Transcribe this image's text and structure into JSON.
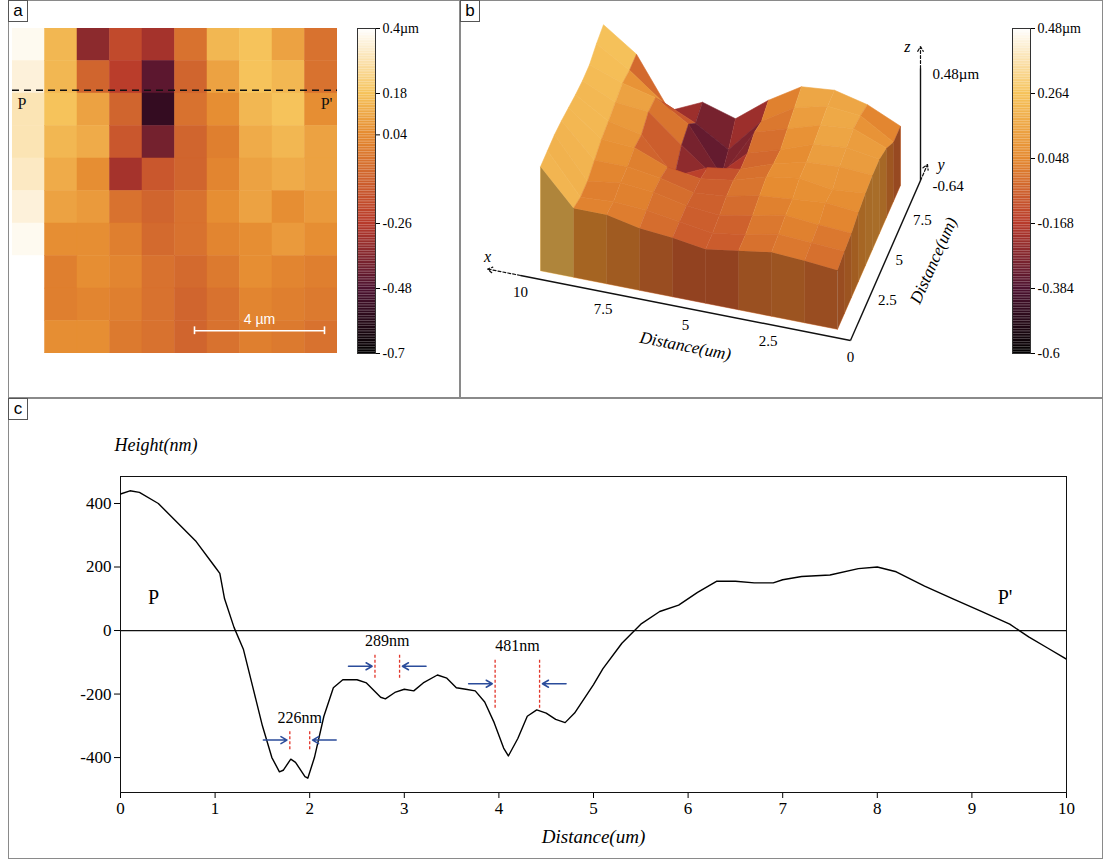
{
  "chart_data": [
    {
      "type": "heatmap",
      "title": "a",
      "x": [
        0.5,
        1.5,
        2.5,
        3.5,
        4.5,
        5.5,
        6.5,
        7.5,
        8.5,
        9.5
      ],
      "y": [
        9.5,
        8.5,
        7.5,
        6.5,
        5.5,
        4.5,
        3.5,
        2.5,
        1.5,
        0.5
      ],
      "z": [
        [
          0.38,
          0.15,
          -0.35,
          -0.2,
          -0.3,
          -0.05,
          0.15,
          0.18,
          0.1,
          -0.05
        ],
        [
          0.35,
          0.15,
          -0.1,
          -0.25,
          -0.45,
          -0.1,
          0.1,
          0.18,
          0.15,
          -0.05
        ],
        [
          0.3,
          0.18,
          0.1,
          -0.1,
          -0.55,
          -0.05,
          0.05,
          0.15,
          0.18,
          0.05
        ],
        [
          0.3,
          0.15,
          0.12,
          -0.15,
          -0.4,
          -0.1,
          0.0,
          0.12,
          0.15,
          0.1
        ],
        [
          0.32,
          0.12,
          0.05,
          -0.3,
          -0.15,
          -0.1,
          0.02,
          0.1,
          0.12,
          0.1
        ],
        [
          0.35,
          0.1,
          0.08,
          -0.05,
          -0.1,
          -0.05,
          0.05,
          0.1,
          0.05,
          0.08
        ],
        [
          0.38,
          0.05,
          0.05,
          0.0,
          -0.08,
          -0.05,
          0.02,
          0.05,
          0.08,
          0.05
        ],
        [
          0.4,
          0.0,
          0.05,
          0.02,
          -0.05,
          -0.08,
          -0.02,
          0.05,
          0.02,
          0.0
        ],
        [
          0.4,
          0.0,
          0.02,
          0.0,
          -0.05,
          -0.1,
          -0.05,
          0.02,
          0.0,
          -0.02
        ],
        [
          0.4,
          0.05,
          0.05,
          -0.02,
          -0.05,
          -0.1,
          -0.05,
          0.0,
          -0.02,
          -0.05
        ]
      ],
      "xlim": [
        0,
        10
      ],
      "ylim": [
        0,
        10
      ],
      "tick_labels": false,
      "colorbar": {
        "lim": [
          -0.7,
          0.4
        ],
        "ticks": [
          {
            "value": 0.4,
            "label": "0.4µm"
          },
          0.18,
          0.04,
          -0.26,
          -0.48,
          -0.7
        ]
      },
      "scale_bar": {
        "value": 4,
        "label": "4 µm"
      },
      "profile": {
        "y": 8.1,
        "labels": [
          "P",
          "P'"
        ]
      }
    },
    {
      "type": "surface3d",
      "title": "b",
      "x": [
        0.5,
        1.5,
        2.5,
        3.5,
        4.5,
        5.5,
        6.5,
        7.5,
        8.5,
        9.5
      ],
      "y": [
        0.5,
        1.5,
        2.5,
        3.5,
        4.5,
        5.5,
        6.5,
        7.5,
        8.5,
        9.5
      ],
      "z": [
        [
          -0.05,
          -0.02,
          0.0,
          -0.05,
          -0.1,
          -0.05,
          -0.02,
          0.05,
          0.05,
          0.4
        ],
        [
          -0.02,
          0.0,
          0.02,
          -0.05,
          -0.1,
          -0.05,
          0.0,
          0.02,
          0.0,
          0.4
        ],
        [
          0.0,
          0.02,
          0.05,
          -0.02,
          -0.08,
          -0.05,
          0.02,
          0.05,
          0.0,
          0.4
        ],
        [
          0.05,
          0.08,
          0.05,
          0.02,
          -0.05,
          -0.08,
          0.0,
          0.05,
          0.05,
          0.38
        ],
        [
          0.08,
          0.05,
          0.1,
          0.05,
          -0.05,
          -0.1,
          -0.05,
          0.08,
          0.1,
          0.35
        ],
        [
          0.1,
          0.12,
          0.1,
          0.02,
          -0.1,
          -0.15,
          -0.3,
          0.05,
          0.12,
          0.32
        ],
        [
          0.1,
          0.15,
          0.12,
          0.0,
          -0.1,
          -0.4,
          -0.15,
          0.12,
          0.15,
          0.3
        ],
        [
          0.05,
          0.18,
          0.15,
          0.05,
          -0.05,
          -0.55,
          -0.1,
          0.1,
          0.18,
          0.3
        ],
        [
          -0.05,
          0.15,
          0.18,
          0.1,
          -0.1,
          -0.45,
          -0.25,
          -0.1,
          0.15,
          0.35
        ],
        [
          -0.05,
          0.1,
          0.18,
          0.15,
          -0.05,
          -0.3,
          -0.2,
          -0.35,
          0.15,
          0.38
        ]
      ],
      "xlim": [
        0,
        10
      ],
      "ylim": [
        0,
        10
      ],
      "zlim": [
        -0.64,
        0.48
      ],
      "xticks": [
        0,
        2.5,
        5,
        7.5,
        10
      ],
      "yticks": [
        2.5,
        5,
        7.5
      ],
      "zticks": [
        -0.64,
        {
          "value": 0.48,
          "label": "0.48µm"
        }
      ],
      "xlabel": "Distance(um)",
      "ylabel": "Distance(um)",
      "axis_names": {
        "x": "x",
        "y": "y",
        "z": "z"
      },
      "colorbar": {
        "lim": [
          -0.6,
          0.48
        ],
        "ticks": [
          {
            "value": 0.48,
            "label": "0.48µm"
          },
          0.264,
          0.048,
          -0.168,
          -0.384,
          -0.6
        ]
      }
    },
    {
      "type": "line",
      "title": "c",
      "x": [
        0,
        0.1,
        0.2,
        0.4,
        0.6,
        0.8,
        1.0,
        1.05,
        1.1,
        1.2,
        1.3,
        1.4,
        1.5,
        1.6,
        1.68,
        1.72,
        1.8,
        1.85,
        1.95,
        1.98,
        2.05,
        2.15,
        2.25,
        2.35,
        2.5,
        2.6,
        2.75,
        2.8,
        2.9,
        3.0,
        3.1,
        3.2,
        3.35,
        3.45,
        3.55,
        3.65,
        3.75,
        3.85,
        3.95,
        4.05,
        4.1,
        4.2,
        4.3,
        4.4,
        4.5,
        4.6,
        4.7,
        4.8,
        5.0,
        5.1,
        5.3,
        5.5,
        5.7,
        5.9,
        6.1,
        6.3,
        6.5,
        6.7,
        6.9,
        7.0,
        7.2,
        7.5,
        7.8,
        8.0,
        8.2,
        8.5,
        8.8,
        9.1,
        9.4,
        9.6,
        9.8,
        10.0
      ],
      "values": [
        430,
        440,
        435,
        400,
        340,
        280,
        200,
        180,
        100,
        10,
        -60,
        -180,
        -300,
        -400,
        -445,
        -440,
        -405,
        -415,
        -460,
        -465,
        -400,
        -270,
        -180,
        -155,
        -155,
        -165,
        -210,
        -215,
        -195,
        -185,
        -190,
        -165,
        -140,
        -150,
        -180,
        -185,
        -190,
        -225,
        -290,
        -370,
        -395,
        -340,
        -270,
        -250,
        -260,
        -280,
        -290,
        -260,
        -170,
        -120,
        -40,
        20,
        60,
        80,
        120,
        155,
        155,
        150,
        150,
        160,
        170,
        175,
        195,
        200,
        185,
        140,
        100,
        60,
        20,
        -20,
        -55,
        -90
      ],
      "color": "#000000",
      "xlim": [
        0,
        10
      ],
      "ylim": [
        -510,
        485
      ],
      "xticks": [
        0,
        1,
        2,
        3,
        4,
        5,
        6,
        7,
        8,
        9,
        10
      ],
      "yticks": [
        -400,
        -200,
        0,
        200,
        400
      ],
      "xlabel": "Distance(um)",
      "ylabel": "Height(nm)",
      "hlines": [
        0
      ],
      "measurements": [
        {
          "label": "226nm",
          "x": [
            1.79,
            2.0
          ],
          "y": [
            -375,
            -315
          ]
        },
        {
          "label": "289nm",
          "x": [
            2.69,
            2.95
          ],
          "y": [
            -150,
            -75
          ]
        },
        {
          "label": "481nm",
          "x": [
            3.96,
            4.43
          ],
          "y": [
            -245,
            -90
          ]
        }
      ],
      "annotations": [
        {
          "text": "P",
          "x": 0.35,
          "y": 105
        },
        {
          "text": "P'",
          "x": 9.35,
          "y": 105
        }
      ]
    }
  ]
}
